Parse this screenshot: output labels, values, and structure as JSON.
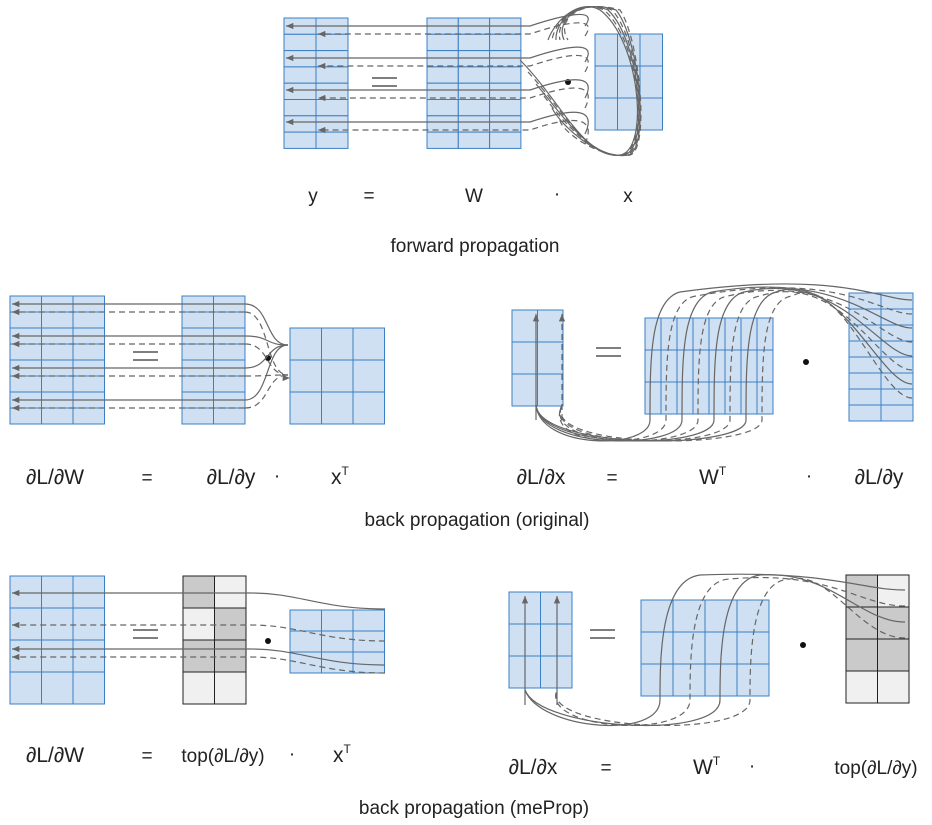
{
  "colors": {
    "cell_blue": "#cfe0f3",
    "border_blue": "#3b7fc4",
    "cell_gray": "#cacaca",
    "cell_light": "#f0f0f0",
    "border_black": "#222222",
    "arrow": "#666666"
  },
  "forward": {
    "caption": "forward propagation",
    "labels": {
      "y": "y",
      "eq": "=",
      "W": "W",
      "dot": "·",
      "x": "x"
    }
  },
  "back_original": {
    "caption": "back propagation (original)",
    "left_labels": {
      "dLdW": "∂L/∂W",
      "eq": "=",
      "dLdy": "∂L/∂y",
      "dot": "·",
      "xT_base": "x",
      "xT_sup": "T"
    },
    "right_labels": {
      "dLdx": "∂L/∂x",
      "eq": "=",
      "WT_base": "W",
      "WT_sup": "T",
      "dot": "·",
      "dLdy": "∂L/∂y"
    }
  },
  "back_meprop": {
    "caption": "back propagation (meProp)",
    "left_labels": {
      "dLdW": "∂L/∂W",
      "eq": "=",
      "top": "top(∂L/∂y)",
      "dot": "·",
      "xT_base": "x",
      "xT_sup": "T"
    },
    "right_labels": {
      "dLdx": "∂L/∂x",
      "eq": "=",
      "WT_base": "W",
      "WT_sup": "T",
      "dot": "·",
      "top": "top(∂L/∂y)"
    },
    "top_grad_pattern": [
      "gray",
      "light",
      "light",
      "gray",
      "gray",
      "gray",
      "light",
      "light"
    ],
    "right_top_grad_pattern": [
      "gray",
      "light",
      "gray",
      "gray",
      "gray",
      "gray",
      "light",
      "light"
    ]
  }
}
